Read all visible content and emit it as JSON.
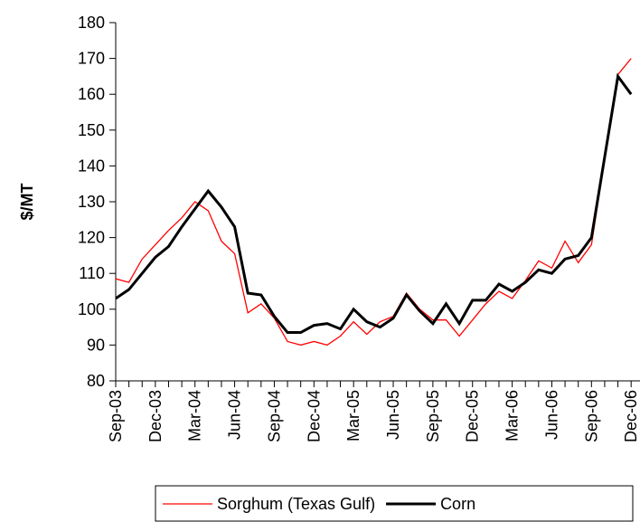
{
  "chart_data": {
    "type": "line",
    "y_label": "$/MT",
    "categories": [
      "Sep-03",
      null,
      null,
      "Dec-03",
      null,
      null,
      "Mar-04",
      null,
      null,
      "Jun-04",
      null,
      null,
      "Sep-04",
      null,
      null,
      "Dec-04",
      null,
      null,
      "Mar-05",
      null,
      null,
      "Jun-05",
      null,
      null,
      "Sep-05",
      null,
      null,
      "Dec-05",
      null,
      null,
      "Mar-06",
      null,
      null,
      "Jun-06",
      null,
      null,
      "Sep-06",
      null,
      null,
      "Dec-06"
    ],
    "series": [
      {
        "name": "Sorghum (Texas Gulf)",
        "color": "#ff0000",
        "width": 1.3,
        "values": [
          108.5,
          107.5,
          114,
          118,
          122,
          125.5,
          130,
          127.5,
          119,
          115.5,
          99,
          101.5,
          97.5,
          91,
          90,
          91,
          90,
          92.5,
          96.5,
          93,
          96.5,
          98,
          104.5,
          100,
          97,
          97,
          92.5,
          97,
          101.5,
          105,
          103,
          108,
          113.5,
          111.5,
          119,
          113,
          118,
          142,
          165.5,
          170
        ]
      },
      {
        "name": "Corn",
        "color": "#000000",
        "width": 3,
        "values": [
          103,
          105.5,
          110,
          114.5,
          117.5,
          123,
          128,
          133,
          128.5,
          123,
          104.5,
          104,
          98,
          93.5,
          93.5,
          95.5,
          96,
          94.5,
          100,
          96.5,
          95,
          97.5,
          104,
          99.5,
          96,
          101.5,
          96,
          102.5,
          102.5,
          107,
          105,
          107.5,
          111,
          110,
          114,
          115,
          120,
          142.5,
          165,
          160
        ]
      }
    ],
    "ylim": [
      80,
      180
    ],
    "yticks": [
      80,
      90,
      100,
      110,
      120,
      130,
      140,
      150,
      160,
      170,
      180
    ],
    "legend": "bottom"
  }
}
